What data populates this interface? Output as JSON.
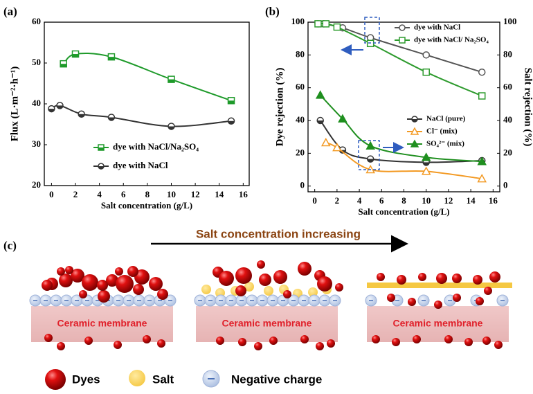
{
  "chart_data": [
    {
      "type": "line",
      "panel_label": "(a)",
      "xlabel": "Salt concentration (g/L)",
      "ylabel": "Flux (L·m⁻²·h⁻¹)",
      "xlim": [
        -0.6,
        16.5
      ],
      "xticks": [
        0,
        2,
        4,
        6,
        8,
        10,
        12,
        14,
        16
      ],
      "ylim": [
        20,
        60
      ],
      "yticks": [
        20,
        30,
        40,
        50,
        60
      ],
      "series": [
        {
          "name": "dye with NaCl/Na₂SO₄",
          "color": "#1e9a2a",
          "marker": "square",
          "marker_fill": "half",
          "x": [
            1,
            2,
            5,
            10,
            15
          ],
          "values": [
            49.8,
            52.2,
            51.5,
            46,
            40.8
          ]
        },
        {
          "name": "dye with NaCl",
          "color": "#333333",
          "marker": "circle",
          "marker_fill": "half",
          "x": [
            0,
            0.7,
            2.5,
            5,
            10,
            15
          ],
          "values": [
            38.8,
            39.6,
            37.5,
            36.7,
            34.5,
            35.8
          ]
        }
      ]
    },
    {
      "type": "line",
      "panel_label": "(b)",
      "xlabel": "Salt concentration (g/L)",
      "ylabel": "Dye rejection (%)",
      "y2label": "Salt rejection (%)",
      "xlim": [
        -0.6,
        16.6
      ],
      "xticks": [
        0,
        2,
        4,
        6,
        8,
        10,
        12,
        14,
        16
      ],
      "ylim": [
        -3.5,
        100
      ],
      "yticks": [
        0,
        20,
        40,
        60,
        80,
        100
      ],
      "y2lim": [
        -3.5,
        100
      ],
      "y2ticks": [
        0,
        20,
        40,
        60,
        80,
        100
      ],
      "series": [
        {
          "name": "dye with NaCl",
          "color": "#555555",
          "marker": "circle",
          "marker_fill": "none",
          "x": [
            0.3,
            0.8,
            2.5,
            5,
            10,
            15
          ],
          "values": [
            99,
            99,
            96.5,
            90.5,
            80,
            69.5
          ]
        },
        {
          "name": "dye with NaCl/ Na₂SO₄",
          "color": "#2e9b2e",
          "marker": "square",
          "marker_fill": "none",
          "x": [
            0.3,
            1,
            2,
            5,
            10,
            15
          ],
          "values": [
            99,
            99,
            97,
            87,
            69.5,
            55
          ]
        },
        {
          "name": "NaCl (pure)",
          "color": "#333333",
          "marker": "circle",
          "marker_fill": "half",
          "axis": "y2",
          "x": [
            0.5,
            2.5,
            5,
            10,
            15
          ],
          "values": [
            40,
            22,
            16.5,
            14.5,
            15.5
          ]
        },
        {
          "name": "Cl⁻ (mix)",
          "color": "#f39a24",
          "marker": "triangle",
          "marker_fill": "none",
          "axis": "y2",
          "x": [
            1,
            2,
            5,
            10,
            15
          ],
          "values": [
            26.5,
            23.5,
            10,
            9,
            4.5
          ]
        },
        {
          "name": "SO₄²⁻ (mix)",
          "color": "#1f8f1f",
          "marker": "triangle",
          "marker_fill": "full",
          "axis": "y2",
          "x": [
            0.5,
            2.5,
            5,
            10,
            15
          ],
          "values": [
            55.5,
            41,
            24.5,
            17.5,
            15
          ]
        }
      ]
    }
  ],
  "diagram": {
    "panel_label": "(c)",
    "title": "Salt concentration increasing",
    "membranes": [
      "Ceramic membrane",
      "Ceramic membrane",
      "Ceramic membrane"
    ],
    "legend": [
      "Dyes",
      "Salt",
      "Negative charge"
    ]
  }
}
